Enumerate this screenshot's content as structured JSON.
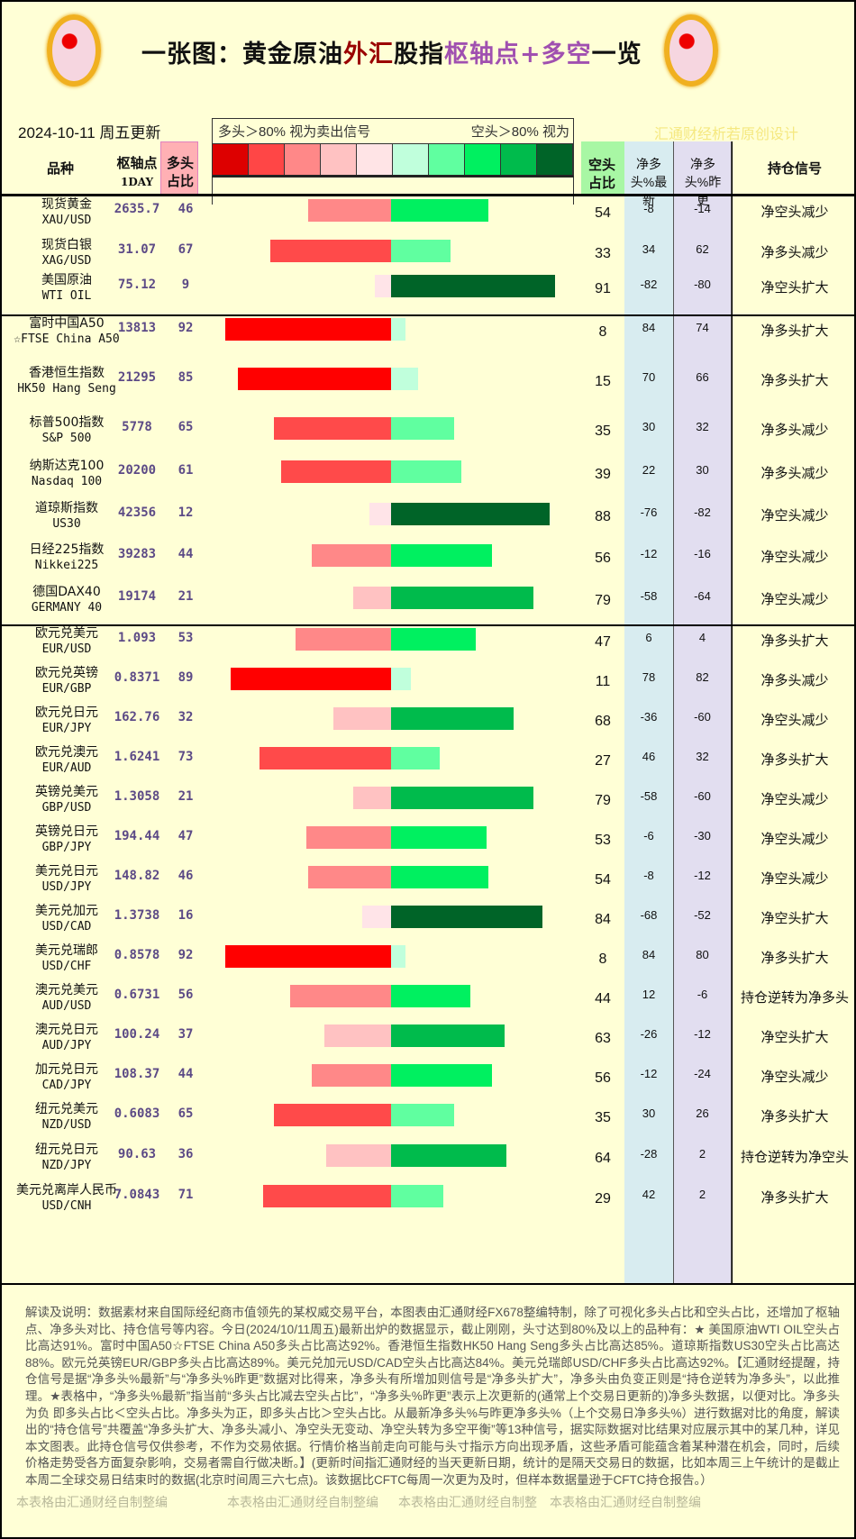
{
  "header": {
    "title_parts": [
      "一张图：黄金原油",
      "外汇",
      "股指",
      "枢轴点+多空",
      "一览"
    ],
    "date": "2024-10-11  周五更新",
    "credit": "汇通财经析若原创设计",
    "legend_left": "多头＞80%  视为卖出信号",
    "legend_right": "空头＞80%  视为"
  },
  "legend_colors": [
    "#dd0000",
    "#ff4646",
    "#ff8888",
    "#ffc2c2",
    "#ffe4e6",
    "#c0ffdc",
    "#60ffa0",
    "#00f060",
    "#00bb4c",
    "#006428"
  ],
  "columns": {
    "name": "品种",
    "pivot": "枢轴点",
    "pivot_sub": "1DAY",
    "long": "多头占比",
    "short": "空头占比",
    "net_latest": "净多头%最新",
    "net_prev": "净多头%昨更",
    "signal": "持仓信号"
  },
  "rows": [
    {
      "cn": "现货黄金",
      "en": "XAU/USD",
      "pivot": "2635.7",
      "long": 46,
      "short": 54,
      "net_latest": "-8",
      "net_prev": "-14",
      "signal": "净空头减少"
    },
    {
      "cn": "现货白银",
      "en": "XAG/USD",
      "pivot": "31.07",
      "long": 67,
      "short": 33,
      "net_latest": "34",
      "net_prev": "62",
      "signal": "净多头减少"
    },
    {
      "cn": "美国原油",
      "en": "WTI OIL",
      "pivot": "75.12",
      "long": 9,
      "short": 91,
      "net_latest": "-82",
      "net_prev": "-80",
      "signal": "净空头扩大"
    },
    {
      "cn": "富时中国A50",
      "en": "☆FTSE China A50",
      "pivot": "13813",
      "long": 92,
      "short": 8,
      "net_latest": "84",
      "net_prev": "74",
      "signal": "净多头扩大"
    },
    {
      "cn": "香港恒生指数",
      "en": "HK50 Hang Seng",
      "pivot": "21295",
      "long": 85,
      "short": 15,
      "net_latest": "70",
      "net_prev": "66",
      "signal": "净多头扩大"
    },
    {
      "cn": "标普500指数",
      "en": "S&P 500",
      "pivot": "5778",
      "long": 65,
      "short": 35,
      "net_latest": "30",
      "net_prev": "32",
      "signal": "净多头减少"
    },
    {
      "cn": "纳斯达克100",
      "en": "Nasdaq 100",
      "pivot": "20200",
      "long": 61,
      "short": 39,
      "net_latest": "22",
      "net_prev": "30",
      "signal": "净多头减少"
    },
    {
      "cn": "道琼斯指数",
      "en": "US30",
      "pivot": "42356",
      "long": 12,
      "short": 88,
      "net_latest": "-76",
      "net_prev": "-82",
      "signal": "净空头减少"
    },
    {
      "cn": "日经225指数",
      "en": "Nikkei225",
      "pivot": "39283",
      "long": 44,
      "short": 56,
      "net_latest": "-12",
      "net_prev": "-16",
      "signal": "净空头减少"
    },
    {
      "cn": "德国DAX40",
      "en": "GERMANY 40",
      "pivot": "19174",
      "long": 21,
      "short": 79,
      "net_latest": "-58",
      "net_prev": "-64",
      "signal": "净空头减少"
    },
    {
      "cn": "欧元兑美元",
      "en": "EUR/USD",
      "pivot": "1.093",
      "long": 53,
      "short": 47,
      "net_latest": "6",
      "net_prev": "4",
      "signal": "净多头扩大"
    },
    {
      "cn": "欧元兑英镑",
      "en": "EUR/GBP",
      "pivot": "0.8371",
      "long": 89,
      "short": 11,
      "net_latest": "78",
      "net_prev": "82",
      "signal": "净多头减少"
    },
    {
      "cn": "欧元兑日元",
      "en": "EUR/JPY",
      "pivot": "162.76",
      "long": 32,
      "short": 68,
      "net_latest": "-36",
      "net_prev": "-60",
      "signal": "净空头减少"
    },
    {
      "cn": "欧元兑澳元",
      "en": "EUR/AUD",
      "pivot": "1.6241",
      "long": 73,
      "short": 27,
      "net_latest": "46",
      "net_prev": "32",
      "signal": "净多头扩大"
    },
    {
      "cn": "英镑兑美元",
      "en": "GBP/USD",
      "pivot": "1.3058",
      "long": 21,
      "short": 79,
      "net_latest": "-58",
      "net_prev": "-60",
      "signal": "净空头减少"
    },
    {
      "cn": "英镑兑日元",
      "en": "GBP/JPY",
      "pivot": "194.44",
      "long": 47,
      "short": 53,
      "net_latest": "-6",
      "net_prev": "-30",
      "signal": "净空头减少"
    },
    {
      "cn": "美元兑日元",
      "en": "USD/JPY",
      "pivot": "148.82",
      "long": 46,
      "short": 54,
      "net_latest": "-8",
      "net_prev": "-12",
      "signal": "净空头减少"
    },
    {
      "cn": "美元兑加元",
      "en": "USD/CAD",
      "pivot": "1.3738",
      "long": 16,
      "short": 84,
      "net_latest": "-68",
      "net_prev": "-52",
      "signal": "净空头扩大"
    },
    {
      "cn": "美元兑瑞郎",
      "en": "USD/CHF",
      "pivot": "0.8578",
      "long": 92,
      "short": 8,
      "net_latest": "84",
      "net_prev": "80",
      "signal": "净多头扩大"
    },
    {
      "cn": "澳元兑美元",
      "en": "AUD/USD",
      "pivot": "0.6731",
      "long": 56,
      "short": 44,
      "net_latest": "12",
      "net_prev": "-6",
      "signal": "持仓逆转为净多头"
    },
    {
      "cn": "澳元兑日元",
      "en": "AUD/JPY",
      "pivot": "100.24",
      "long": 37,
      "short": 63,
      "net_latest": "-26",
      "net_prev": "-12",
      "signal": "净空头扩大"
    },
    {
      "cn": "加元兑日元",
      "en": "CAD/JPY",
      "pivot": "108.37",
      "long": 44,
      "short": 56,
      "net_latest": "-12",
      "net_prev": "-24",
      "signal": "净空头减少"
    },
    {
      "cn": "纽元兑美元",
      "en": "NZD/USD",
      "pivot": "0.6083",
      "long": 65,
      "short": 35,
      "net_latest": "30",
      "net_prev": "26",
      "signal": "净多头扩大"
    },
    {
      "cn": "纽元兑日元",
      "en": "NZD/JPY",
      "pivot": "90.63",
      "long": 36,
      "short": 64,
      "net_latest": "-28",
      "net_prev": "2",
      "signal": "持仓逆转为净空头"
    },
    {
      "cn": "美元兑离岸人民币",
      "en": "USD/CNH",
      "pivot": "7.0843",
      "long": 71,
      "short": 29,
      "net_latest": "42",
      "net_prev": "2",
      "signal": "净多头扩大"
    }
  ],
  "footer": {
    "text": "解读及说明：数据素材来自国际经纪商市值领先的某权威交易平台，本图表由汇通财经FX678整编特制，除了可视化多头占比和空头占比，还增加了枢轴点、净多头对比、持仓信号等内容。今日(2024/10/11周五)最新出炉的数据显示，截止刚刚，头寸达到80%及以上的品种有：★ 美国原油WTI OIL空头占比高达91%。富时中国A50☆FTSE China A50多头占比高达92%。香港恒生指数HK50 Hang Seng多头占比高达85%。道琼斯指数US30空头占比高达88%。欧元兑英镑EUR/GBP多头占比高达89%。美元兑加元USD/CAD空头占比高达84%。美元兑瑞郎USD/CHF多头占比高达92%。【汇通财经提醒，持仓信号是据“净多头%最新”与“净多头%昨更”数据对比得来，净多头有所增加则信号是“净多头扩大”，净多头由负变正则是“持仓逆转为净多头”，以此推理。★表格中，“净多头%最新”指当前“多头占比减去空头占比”，“净多头%昨更”表示上次更新的(通常上个交易日更新的)净多头数据，以便对比。净多头为负 即多头占比＜空头占比。净多头为正，即多头占比＞空头占比。从最新净多头%与昨更净多头%（上个交易日净多头%）进行数据对比的角度，解读出的“持仓信号”共覆盖“净多头扩大、净多头减小、净空头无变动、净空头转为多空平衡”等13种信号，据实际数据对比结果对应展示其中的某几种，详见本文图表。此持仓信号仅供参考，不作为交易依据。行情价格当前走向可能与头寸指示方向出现矛盾，这些矛盾可能蕴含着某种潜在机会，同时，后续价格走势受各方面复杂影响，交易者需自行做决断。】(更新时间指汇通财经的当天更新日期，统计的是隔天交易日的数据，比如本周三上午统计的是截止本周二全球交易日结束时的数据(北京时间周三六七点)。该数据比CFTC每周一次更为及时，但样本数据量逊于CFTC持仓报告。）",
    "watermarks": [
      "本表格由汇通财经自制整编",
      "本表格由汇通财经自制整编",
      "本表格由汇通财经自制整",
      "本表格由汇通财经自制整编"
    ]
  }
}
